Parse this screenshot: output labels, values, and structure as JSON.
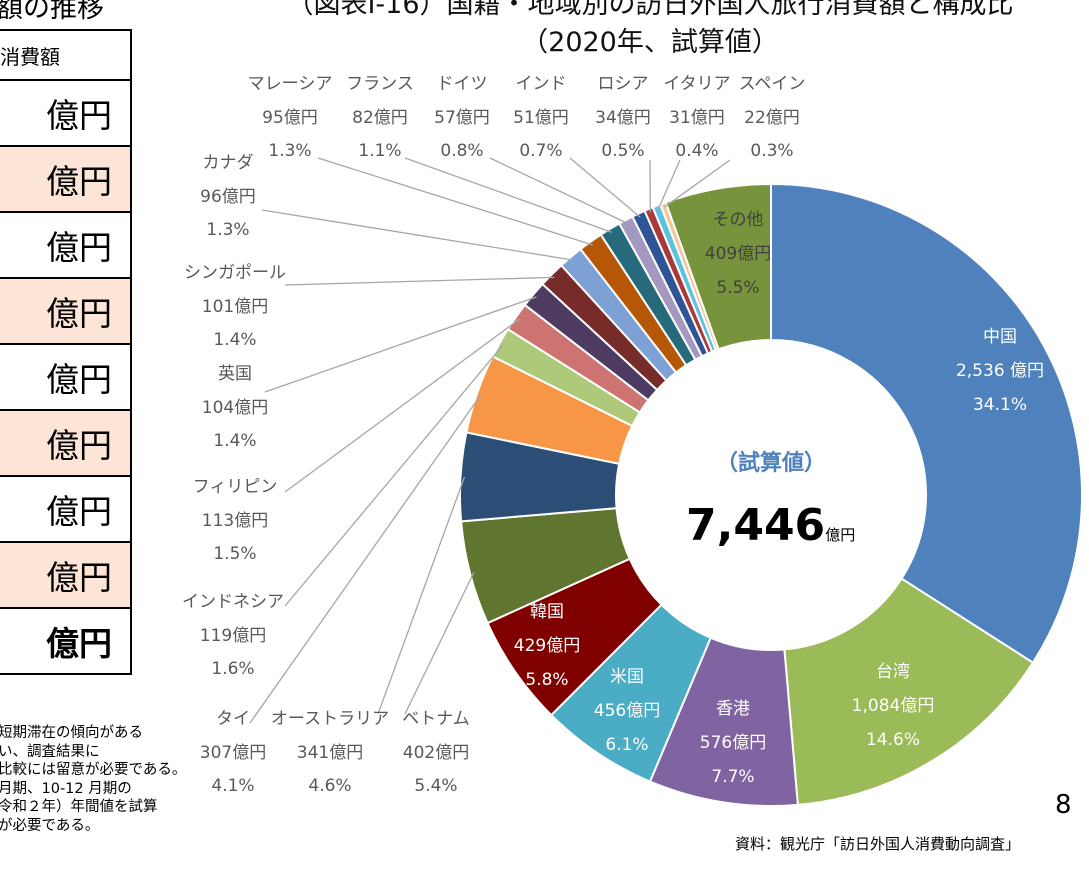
{
  "left_panel": {
    "heading": "額の推移",
    "table_header": "消費額",
    "rows": [
      "億円",
      "億円",
      "億円",
      "億円",
      "億円",
      "億円",
      "億円",
      "億円",
      "億円"
    ],
    "notes": [
      "短期滞在の傾向がある",
      "い、調査結果に",
      "比較には留意が必要である。",
      "月期、10-12 月期の",
      "令和２年）年間値を試算",
      "が必要である。"
    ]
  },
  "page_number": "8",
  "source": "資料：観光庁「訪日外国人消費動向調査」",
  "chart_data": {
    "type": "pie",
    "variant": "donut",
    "title": "（図表Ⅰ-16）国籍・地域別の訪日外国人旅行消費額と構成比",
    "subtitle": "（2020年、試算値）",
    "center_label": "（試算値）",
    "center_value": "7,446",
    "center_unit": "億円",
    "slices": [
      {
        "name": "中国",
        "value": 2536,
        "value_label": "2,536 億円",
        "percent": "34.1%",
        "color": "#4f81bd"
      },
      {
        "name": "台湾",
        "value": 1084,
        "value_label": "1,084億円",
        "percent": "14.6%",
        "color": "#9bbb59"
      },
      {
        "name": "香港",
        "value": 576,
        "value_label": "576億円",
        "percent": "7.7%",
        "color": "#8064a2"
      },
      {
        "name": "米国",
        "value": 456,
        "value_label": "456億円",
        "percent": "6.1%",
        "color": "#4bacc6"
      },
      {
        "name": "韓国",
        "value": 429,
        "value_label": "429億円",
        "percent": "5.8%",
        "color": "#800000"
      },
      {
        "name": "ベトナム",
        "value": 402,
        "value_label": "402億円",
        "percent": "5.4%",
        "color": "#5f7530"
      },
      {
        "name": "オーストラリア",
        "value": 341,
        "value_label": "341億円",
        "percent": "4.6%",
        "color": "#2c4d75"
      },
      {
        "name": "タイ",
        "value": 307,
        "value_label": "307億円",
        "percent": "4.1%",
        "color": "#f79646"
      },
      {
        "name": "インドネシア",
        "value": 119,
        "value_label": "119億円",
        "percent": "1.6%",
        "color": "#afc97a"
      },
      {
        "name": "フィリピン",
        "value": 113,
        "value_label": "113億円",
        "percent": "1.5%",
        "color": "#cd7371"
      },
      {
        "name": "英国",
        "value": 104,
        "value_label": "104億円",
        "percent": "1.4%",
        "color": "#4d3b62"
      },
      {
        "name": "シンガポール",
        "value": 101,
        "value_label": "101億円",
        "percent": "1.4%",
        "color": "#772c2a"
      },
      {
        "name": "カナダ",
        "value": 96,
        "value_label": "96億円",
        "percent": "1.3%",
        "color": "#7da1d4"
      },
      {
        "name": "マレーシア",
        "value": 95,
        "value_label": "95億円",
        "percent": "1.3%",
        "color": "#b65708"
      },
      {
        "name": "フランス",
        "value": 82,
        "value_label": "82億円",
        "percent": "1.1%",
        "color": "#276a7c"
      },
      {
        "name": "ドイツ",
        "value": 57,
        "value_label": "57億円",
        "percent": "0.8%",
        "color": "#a598c0"
      },
      {
        "name": "インド",
        "value": 51,
        "value_label": "51億円",
        "percent": "0.7%",
        "color": "#2f5597"
      },
      {
        "name": "ロシア",
        "value": 34,
        "value_label": "34億円",
        "percent": "0.5%",
        "color": "#a83a3a"
      },
      {
        "name": "イタリア",
        "value": 31,
        "value_label": "31億円",
        "percent": "0.4%",
        "color": "#5bc4dc"
      },
      {
        "name": "スペイン",
        "value": 22,
        "value_label": "22億円",
        "percent": "0.3%",
        "color": "#f6c69b"
      },
      {
        "name": "その他",
        "value": 409,
        "value_label": "409億円",
        "percent": "5.5%",
        "color": "#77933c"
      }
    ]
  }
}
